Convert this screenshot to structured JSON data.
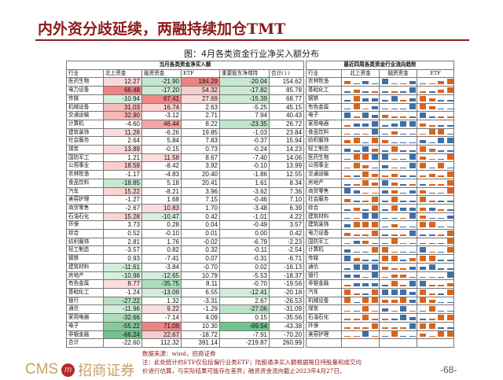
{
  "title": "内外资分歧延续，两融持续加仓TMT",
  "subtitle": "图：4月各类资金行业净买入额分布",
  "left_table": {
    "group_header": "当月各类资金净买入额",
    "headers": [
      "行业",
      "北上资金",
      "融资资金",
      "ETF",
      "重要股东净增持",
      "合计(↓)"
    ],
    "rows": [
      [
        "医药生物",
        "12.27",
        "-21.90",
        "184.29",
        "-20.04",
        "154.62"
      ],
      [
        "电力设备",
        "66.48",
        "-17.20",
        "54.32",
        "-17.82",
        "85.78"
      ],
      [
        "传媒",
        "-10.94",
        "67.41",
        "27.69",
        "-15.39",
        "68.77"
      ],
      [
        "机械设备",
        "31.03",
        "16.74",
        "2.63",
        "-5.25",
        "45.15"
      ],
      [
        "交通运输",
        "32.90",
        "-3.12",
        "2.71",
        "7.94",
        "40.43"
      ],
      [
        "计算机",
        "-4.60",
        "46.44",
        "8.22",
        "-23.35",
        "26.72"
      ],
      [
        "建筑装饰",
        "11.28",
        "-6.26",
        "19.85",
        "-1.03",
        "23.84"
      ],
      [
        "社会服务",
        "2.64",
        "5.84",
        "7.83",
        "-0.37",
        "15.94"
      ],
      [
        "煤炭",
        "13.89",
        "-0.15",
        "0.73",
        "-0.24",
        "14.23"
      ],
      [
        "国防军工",
        "1.21",
        "11.58",
        "8.67",
        "-7.40",
        "14.06"
      ],
      [
        "公用事业",
        "18.59",
        "-8.42",
        "3.92",
        "-0.10",
        "13.99"
      ],
      [
        "农林牧渔",
        "-1.17",
        "-4.83",
        "20.40",
        "-1.86",
        "12.55"
      ],
      [
        "食品饮料",
        "-18.85",
        "5.18",
        "20.41",
        "1.61",
        "8.34"
      ],
      [
        "汽车",
        "15.22",
        "-8.21",
        "3.96",
        "-3.62",
        "7.36"
      ],
      [
        "美容护理",
        "-1.27",
        "1.68",
        "7.15",
        "-0.46",
        "7.10"
      ],
      [
        "商贸零售",
        "-2.67",
        "10.83",
        "1.70",
        "-3.48",
        "6.39"
      ],
      [
        "石油石化",
        "15.28",
        "-10.47",
        "0.42",
        "-1.01",
        "4.22"
      ],
      [
        "环保",
        "3.73",
        "0.28",
        "0.04",
        "-0.49",
        "3.57"
      ],
      [
        "综合",
        "0.52",
        "-0.10",
        "0.01",
        "0.00",
        "0.42"
      ],
      [
        "纺织服饰",
        "2.81",
        "1.76",
        "-0.02",
        "-6.79",
        "-2.23"
      ],
      [
        "轻工制造",
        "-3.57",
        "0.82",
        "0.32",
        "-0.11",
        "-2.54"
      ],
      [
        "钢铁",
        "0.93",
        "-7.41",
        "0.07",
        "-0.31",
        "-6.71"
      ],
      [
        "建筑材料",
        "-11.61",
        "-3.84",
        "-0.70",
        "0.02",
        "-16.13"
      ],
      [
        "房地产",
        "-10.98",
        "-12.65",
        "10.79",
        "-5.53",
        "-18.37"
      ],
      [
        "有色金属",
        "8.77",
        "-35.75",
        "8.11",
        "-0.70",
        "-19.56"
      ],
      [
        "基础化工",
        "-1.24",
        "-13.09",
        "6.55",
        "-12.41",
        "-20.18"
      ],
      [
        "银行",
        "-27.22",
        "1.32",
        "-3.31",
        "2.67",
        "-26.53"
      ],
      [
        "通信",
        "-11.96",
        "9.22",
        "-1.29",
        "-27.06",
        "-31.09"
      ],
      [
        "家用电器",
        "-32.66",
        "-7.14",
        "4.09",
        "0.15",
        "-35.56"
      ],
      [
        "电子",
        "-55.22",
        "71.09",
        "10.30",
        "-69.54",
        "-43.38"
      ],
      [
        "非银金融",
        "-66.24",
        "22.67",
        "-18.72",
        "-7.91",
        "-70.20"
      ]
    ],
    "total": [
      "合计",
      "-22.60",
      "112.32",
      "391.14",
      "-219.87",
      "260.99"
    ]
  },
  "right_table": {
    "group_header": "最近四周各类资金行业流向趋势",
    "headers": [
      "行业",
      "北上资金",
      "融资资金",
      "ETF"
    ],
    "rows": [
      [
        "农林牧渔",
        [
          2,
          -1,
          -2,
          -1
        ],
        [
          -3,
          1,
          1,
          -2
        ],
        [
          -1,
          1,
          2,
          3
        ]
      ],
      [
        "基础化工",
        [
          -1,
          2,
          -1,
          1
        ],
        [
          -1,
          1,
          -1,
          -3
        ],
        [
          1,
          -1,
          2,
          3
        ]
      ],
      [
        "钢铁",
        [
          -1,
          3,
          -2,
          -2
        ],
        [
          -1,
          -3,
          1,
          -2
        ],
        [
          3,
          2,
          -1,
          -1
        ]
      ],
      [
        "有色金属",
        [
          -1,
          3,
          1,
          -2
        ],
        [
          -1,
          -1,
          -1,
          -3
        ],
        [
          3,
          2,
          -1,
          -1
        ]
      ],
      [
        "电子",
        [
          -3,
          1,
          -3,
          -2
        ],
        [
          2,
          1,
          1,
          -1
        ],
        [
          -3,
          -1,
          1,
          1
        ]
      ],
      [
        "家用电器",
        [
          1,
          -2,
          -2,
          -3
        ],
        [
          -1,
          -2,
          -3,
          -3
        ],
        [
          2,
          1,
          -1,
          -1
        ]
      ],
      [
        "食品饮料",
        [
          1,
          -1,
          1,
          -3
        ],
        [
          -1,
          2,
          -1,
          -1
        ],
        [
          1,
          3,
          3,
          -1
        ]
      ],
      [
        "纺织服饰",
        [
          2,
          3,
          -1,
          3
        ],
        [
          2,
          -1,
          -1,
          -1
        ],
        [
          -2,
          -1,
          -3,
          -3
        ]
      ],
      [
        "轻工制造",
        [
          -2,
          -1,
          -3,
          2
        ],
        [
          -1,
          3,
          -1,
          -1
        ],
        [
          3,
          2,
          -1,
          -1
        ]
      ],
      [
        "医药生物",
        [
          -1,
          3,
          3,
          -3
        ],
        [
          -3,
          1,
          -1,
          -3
        ],
        [
          2,
          1,
          -1,
          3
        ]
      ],
      [
        "公用事业",
        [
          1,
          3,
          2,
          -1
        ],
        [
          -2,
          1,
          -1,
          -3
        ],
        [
          3,
          -1,
          3,
          -1
        ]
      ],
      [
        "交通运输",
        [
          1,
          -1,
          3,
          2
        ],
        [
          1,
          2,
          -1,
          -1
        ],
        [
          1,
          2,
          1,
          3
        ]
      ],
      [
        "房地产",
        [
          -1,
          1,
          3,
          2
        ],
        [
          -3,
          2,
          -1,
          1
        ],
        [
          -1,
          1,
          1,
          3
        ]
      ],
      [
        "商贸零售",
        [
          -3,
          -2,
          1,
          1
        ],
        [
          -2,
          2,
          -1,
          -2
        ],
        [
          2,
          -1,
          -1,
          3
        ]
      ],
      [
        "社会服务",
        [
          2,
          -1,
          1,
          3
        ],
        [
          -1,
          3,
          -1,
          -1
        ],
        [
          3,
          1,
          -1,
          -1
        ]
      ],
      [
        "综合",
        [
          -1,
          2,
          -1,
          3
        ],
        [
          -1,
          3,
          -2,
          -2
        ],
        [
          2,
          -2,
          1,
          -1
        ]
      ],
      [
        "建筑材料",
        [
          -1,
          1,
          -3,
          -3
        ],
        [
          -1,
          -1,
          1,
          -3
        ],
        [
          2,
          -1,
          -1,
          -2
        ]
      ],
      [
        "建筑装饰",
        [
          -2,
          3,
          3,
          3
        ],
        [
          -1,
          2,
          -1,
          -1
        ],
        [
          3,
          3,
          -1,
          -1
        ]
      ],
      [
        "电力设备",
        [
          2,
          1,
          1,
          3
        ],
        [
          -1,
          1,
          1,
          -3
        ],
        [
          -1,
          -1,
          1,
          3
        ]
      ],
      [
        "国防军工",
        [
          1,
          -2,
          2,
          -1
        ],
        [
          -1,
          3,
          1,
          -1
        ],
        [
          -1,
          -1,
          -1,
          3
        ]
      ],
      [
        "计算机",
        [
          -2,
          -1,
          -1,
          3
        ],
        [
          3,
          1,
          -1,
          -1
        ],
        [
          -3,
          1,
          -1,
          3
        ]
      ],
      [
        "传媒",
        [
          -3,
          2,
          -1,
          -1
        ],
        [
          3,
          3,
          -1,
          2
        ],
        [
          3,
          3,
          -1,
          -1
        ]
      ],
      [
        "通信",
        [
          -1,
          -3,
          -3,
          -3
        ],
        [
          2,
          1,
          1,
          -2
        ],
        [
          -2,
          -3,
          -1,
          -1
        ]
      ],
      [
        "银行",
        [
          -2,
          -2,
          1,
          -3
        ],
        [
          1,
          2,
          2,
          -1
        ],
        [
          1,
          1,
          -1,
          -3
        ]
      ],
      [
        "非银金融",
        [
          1,
          -2,
          -2,
          -2
        ],
        [
          -1,
          3,
          1,
          -3
        ],
        [
          -3,
          1,
          1,
          2
        ]
      ],
      [
        "汽车",
        [
          3,
          1,
          -1,
          3
        ],
        [
          -3,
          -3,
          -3,
          -2
        ],
        [
          3,
          1,
          -1,
          3
        ]
      ],
      [
        "机械设备",
        [
          3,
          -1,
          3,
          3
        ],
        [
          2,
          2,
          3,
          -2
        ],
        [
          3,
          2,
          -1,
          -1
        ]
      ],
      [
        "煤炭",
        [
          1,
          -1,
          3,
          1
        ],
        [
          -2,
          1,
          -3,
          1
        ],
        [
          -1,
          3,
          -1,
          -1
        ]
      ],
      [
        "石油石化",
        [
          1,
          1,
          3,
          1
        ],
        [
          1,
          -1,
          -3,
          -2
        ],
        [
          -1,
          1,
          3,
          3
        ]
      ],
      [
        "环保",
        [
          1,
          1,
          1,
          3
        ],
        [
          1,
          1,
          1,
          -3
        ],
        [
          3,
          3,
          -1,
          -1
        ]
      ],
      [
        "美容护理",
        [
          1,
          1,
          -3,
          1
        ],
        [
          -1,
          3,
          -1,
          -1
        ],
        [
          2,
          1,
          3,
          3
        ]
      ]
    ]
  },
  "colors": {
    "positive_bar": "#d9641c",
    "negative_bar": "#3d6fa8",
    "heat_positive": "#f08a8a",
    "heat_negative": "#6cc48a",
    "title": "#8b1a1a"
  },
  "footer": {
    "source": "数据来源：wind，招商证券",
    "note1": "注：此处统计的ETF仅包括偏行业类ETF；陆股通净买入额根据每日持股量和成交均",
    "note2": "价进行估算，与实际结果可能存在差异；融资资金流向截止2023年4月27日。",
    "logo_latin": "CMS",
    "logo_cn": "招商证券",
    "page": "-68-"
  }
}
